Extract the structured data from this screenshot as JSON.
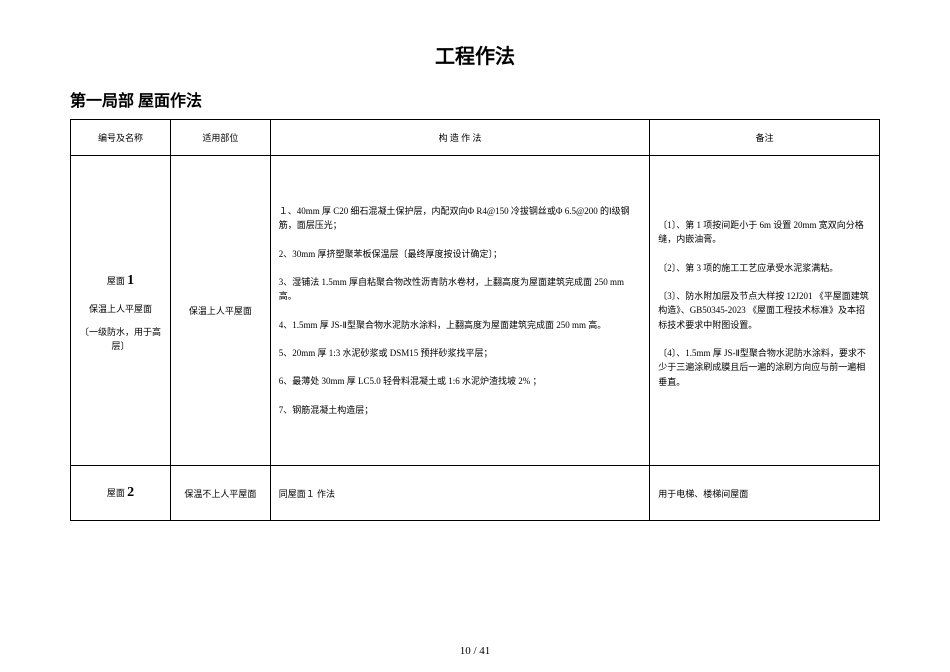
{
  "main_title": "工程作法",
  "section_title": "第一局部  屋面作法",
  "headers": {
    "code": "编号及名称",
    "scope": "适用部位",
    "construct": "构  造  作  法",
    "note": "备注"
  },
  "row1": {
    "code_prefix": "屋面",
    "code_num": "1",
    "code_desc1": "保温上人平屋面",
    "code_desc2": "〔一级防水，用于高层〕",
    "scope": "保温上人平屋面",
    "items": {
      "i1": "１、40mm  厚 C20  细石混凝土保护层，内配双向Φ R4@150  冷拔钢丝或Φ 6.5@200  的Ⅰ级钢筋，面层压光；",
      "i2": "2、30mm  厚挤塑聚苯板保温层〔最终厚度按设计确定〕；",
      "i3": "3、湿铺法 1.5mm  厚自粘聚合物改性沥青防水卷材，上翻高度为屋面建筑完成面 250 mm  高。",
      "i4": "4、1.5mm  厚 JS-Ⅱ型聚合物水泥防水涂料，上翻高度为屋面建筑完成面 250 mm  高。",
      "i5": "5、20mm  厚 1:3  水泥砂浆或 DSM15  预拌砂浆找平层；",
      "i6": "6、最薄处 30mm  厚 LC5.0  轻骨料混凝土或 1:6  水泥炉渣找坡 2% ；",
      "i7": "7、钢筋混凝土构造层；"
    },
    "notes": {
      "n1": "〔1〕、第 1 项按间距小于 6m 设置 20mm 宽双向分格缝，内嵌油膏。",
      "n2": "〔2〕、第 3 项的施工工艺应承受水泥浆满粘。",
      "n3": "〔3〕、防水附加层及节点大样按 12J201 《平屋面建筑构造》、GB50345-2023 《屋面工程技术标准》及本招标技术要求中附图设置。",
      "n4": "〔4〕、1.5mm  厚 JS-Ⅱ型聚合物水泥防水涂料，要求不少于三遍涂刷成膜且后一遍的涂刷方向应与前一遍相垂直。"
    }
  },
  "row2": {
    "code_prefix": "屋面",
    "code_num": "2",
    "scope": "保温不上人平屋面",
    "construct": "同屋面１  作法",
    "note": "用于电梯、楼梯间屋面"
  },
  "page": "10 / 41"
}
